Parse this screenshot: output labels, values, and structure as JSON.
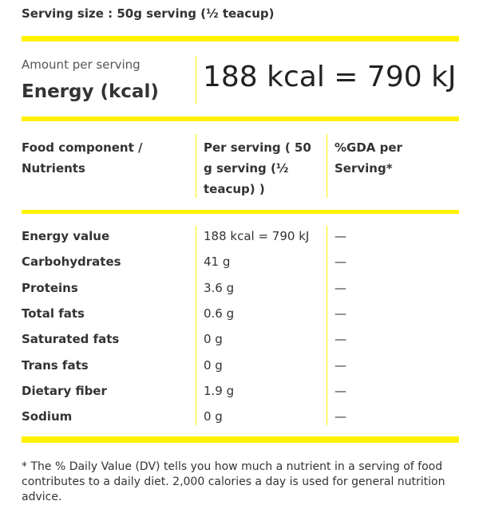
{
  "serving_size": "Serving size : 50g serving (½ teacup)",
  "amount_per_serving": "Amount per serving",
  "energy_label": "Energy (kcal)",
  "energy_value": "188 kcal = 790 kJ",
  "headers": [
    "Food component / Nutrients",
    "Per serving ( 50 g serving (½ teacup) )",
    "%GDA per Serving*"
  ],
  "rows": [
    {
      "name": "Energy value",
      "value": "188 kcal = 790 kJ",
      "gda": "—"
    },
    {
      "name": "Carbohydrates",
      "value": "41 g",
      "gda": "—"
    },
    {
      "name": "Proteins",
      "value": "3.6 g",
      "gda": "—"
    },
    {
      "name": "Total fats",
      "value": "0.6 g",
      "gda": "—"
    },
    {
      "name": "Saturated fats",
      "value": "0 g",
      "gda": "—"
    },
    {
      "name": "Trans fats",
      "value": "0 g",
      "gda": "—"
    },
    {
      "name": "Dietary fiber",
      "value": "1.9 g",
      "gda": "—"
    },
    {
      "name": "Sodium",
      "value": "0 g",
      "gda": "—"
    }
  ],
  "footnote": "* The % Daily Value (DV) tells you how much a nutrient in a serving of food contributes to a daily diet. 2,000 calories a day is used for general nutrition advice.",
  "colors": {
    "accent": "#fff200",
    "text": "#333333"
  }
}
